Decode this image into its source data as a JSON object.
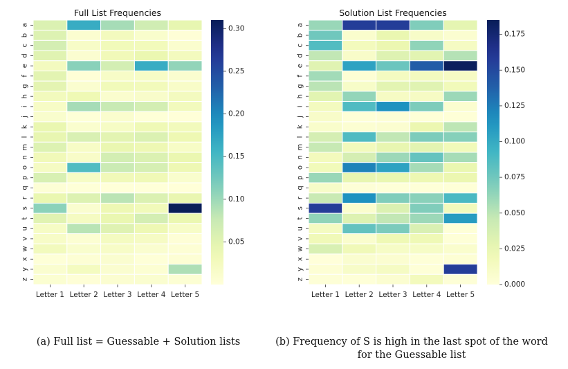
{
  "letters": [
    "a",
    "b",
    "c",
    "d",
    "e",
    "f",
    "g",
    "h",
    "i",
    "j",
    "k",
    "l",
    "m",
    "n",
    "o",
    "p",
    "q",
    "r",
    "s",
    "t",
    "u",
    "v",
    "w",
    "x",
    "y",
    "z"
  ],
  "chart_data": [
    {
      "type": "heatmap",
      "title": "Full List Frequencies",
      "xlabel": "",
      "ylabel": "",
      "x_labels": [
        "Letter 1",
        "Letter 2",
        "Letter 3",
        "Letter 4",
        "Letter 5"
      ],
      "y_labels": [
        "a",
        "b",
        "c",
        "d",
        "e",
        "f",
        "g",
        "h",
        "i",
        "j",
        "k",
        "l",
        "m",
        "n",
        "o",
        "p",
        "q",
        "r",
        "s",
        "t",
        "u",
        "v",
        "w",
        "x",
        "y",
        "z"
      ],
      "colorbar": {
        "range": [
          0.0,
          0.31
        ],
        "ticks": [
          0.05,
          0.1,
          0.15,
          0.2,
          0.25,
          0.3
        ],
        "tick_labels": [
          "0.05",
          "0.10",
          "0.15",
          "0.20",
          "0.25",
          "0.30"
        ],
        "colormap": "YlGnBu"
      },
      "values": [
        [
          0.057,
          0.165,
          0.095,
          0.068,
          0.045
        ],
        [
          0.055,
          0.009,
          0.026,
          0.013,
          0.003
        ],
        [
          0.064,
          0.017,
          0.03,
          0.029,
          0.011
        ],
        [
          0.052,
          0.009,
          0.031,
          0.041,
          0.026
        ],
        [
          0.025,
          0.111,
          0.065,
          0.165,
          0.106
        ],
        [
          0.049,
          0.003,
          0.017,
          0.018,
          0.01
        ],
        [
          0.048,
          0.01,
          0.03,
          0.029,
          0.016
        ],
        [
          0.027,
          0.035,
          0.011,
          0.015,
          0.025
        ],
        [
          0.018,
          0.095,
          0.076,
          0.065,
          0.027
        ],
        [
          0.012,
          0.002,
          0.011,
          0.002,
          0.001
        ],
        [
          0.042,
          0.011,
          0.019,
          0.034,
          0.028
        ],
        [
          0.044,
          0.059,
          0.049,
          0.057,
          0.037
        ],
        [
          0.055,
          0.018,
          0.042,
          0.036,
          0.018
        ],
        [
          0.031,
          0.016,
          0.065,
          0.057,
          0.041
        ],
        [
          0.021,
          0.145,
          0.073,
          0.062,
          0.036
        ],
        [
          0.06,
          0.019,
          0.031,
          0.033,
          0.012
        ],
        [
          0.004,
          0.002,
          0.001,
          0.001,
          0.001
        ],
        [
          0.042,
          0.055,
          0.084,
          0.057,
          0.043
        ],
        [
          0.11,
          0.01,
          0.036,
          0.03,
          0.315
        ],
        [
          0.051,
          0.022,
          0.042,
          0.064,
          0.041
        ],
        [
          0.019,
          0.085,
          0.053,
          0.036,
          0.017
        ],
        [
          0.017,
          0.007,
          0.023,
          0.02,
          0.003
        ],
        [
          0.027,
          0.012,
          0.017,
          0.01,
          0.005
        ],
        [
          0.002,
          0.005,
          0.01,
          0.002,
          0.005
        ],
        [
          0.01,
          0.024,
          0.01,
          0.007,
          0.091
        ],
        [
          0.008,
          0.003,
          0.009,
          0.01,
          0.006
        ]
      ]
    },
    {
      "type": "heatmap",
      "title": "Solution List Frequencies",
      "xlabel": "",
      "ylabel": "",
      "x_labels": [
        "Letter 1",
        "Letter 2",
        "Letter 3",
        "Letter 4",
        "Letter 5"
      ],
      "y_labels": [
        "a",
        "b",
        "c",
        "d",
        "e",
        "f",
        "g",
        "h",
        "i",
        "j",
        "k",
        "l",
        "m",
        "n",
        "o",
        "p",
        "q",
        "r",
        "s",
        "t",
        "u",
        "v",
        "w",
        "x",
        "y",
        "z"
      ],
      "colorbar": {
        "range": [
          0.0,
          0.185
        ],
        "ticks": [
          0.0,
          0.025,
          0.05,
          0.075,
          0.1,
          0.125,
          0.15,
          0.175
        ],
        "tick_labels": [
          "0.000",
          "0.025",
          "0.050",
          "0.075",
          "0.100",
          "0.125",
          "0.150",
          "0.175"
        ],
        "colormap": "YlGnBu"
      },
      "values": [
        [
          0.061,
          0.157,
          0.157,
          0.069,
          0.028
        ],
        [
          0.075,
          0.007,
          0.025,
          0.01,
          0.005
        ],
        [
          0.086,
          0.016,
          0.024,
          0.064,
          0.013
        ],
        [
          0.048,
          0.009,
          0.032,
          0.03,
          0.052
        ],
        [
          0.031,
          0.105,
          0.077,
          0.14,
          0.183
        ],
        [
          0.058,
          0.003,
          0.014,
          0.015,
          0.012
        ],
        [
          0.05,
          0.01,
          0.029,
          0.031,
          0.018
        ],
        [
          0.03,
          0.063,
          0.012,
          0.012,
          0.06
        ],
        [
          0.015,
          0.087,
          0.115,
          0.07,
          0.005
        ],
        [
          0.009,
          0.001,
          0.002,
          0.001,
          0.001
        ],
        [
          0.008,
          0.004,
          0.005,
          0.024,
          0.049
        ],
        [
          0.038,
          0.087,
          0.048,
          0.07,
          0.067
        ],
        [
          0.046,
          0.017,
          0.026,
          0.029,
          0.018
        ],
        [
          0.016,
          0.038,
          0.06,
          0.079,
          0.057
        ],
        [
          0.018,
          0.122,
          0.105,
          0.057,
          0.025
        ],
        [
          0.061,
          0.026,
          0.025,
          0.022,
          0.024
        ],
        [
          0.01,
          0.002,
          0.001,
          0.001,
          0.001
        ],
        [
          0.045,
          0.115,
          0.069,
          0.066,
          0.089
        ],
        [
          0.157,
          0.007,
          0.034,
          0.069,
          0.017
        ],
        [
          0.064,
          0.033,
          0.048,
          0.06,
          0.109
        ],
        [
          0.014,
          0.08,
          0.071,
          0.035,
          0.001
        ],
        [
          0.019,
          0.007,
          0.021,
          0.02,
          0.001
        ],
        [
          0.036,
          0.019,
          0.011,
          0.011,
          0.007
        ],
        [
          0.0,
          0.006,
          0.005,
          0.001,
          0.003
        ],
        [
          0.003,
          0.01,
          0.013,
          0.001,
          0.157
        ],
        [
          0.002,
          0.001,
          0.005,
          0.016,
          0.002
        ]
      ]
    }
  ],
  "captions": {
    "a": "(a) Full list = Guessable + Solution lists",
    "b_line1": "(b) Frequency of S is high in the last spot of the word",
    "b_line2": "for the Guessable list"
  }
}
